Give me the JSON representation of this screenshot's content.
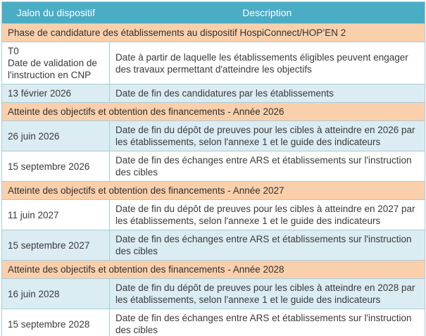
{
  "colors": {
    "header_bg": "#4BACC6",
    "header_text": "#FFFFFF",
    "section_bg": "#FAD0AC",
    "row_blue_bg": "#DBECF3",
    "row_white_bg": "#FFFFFF",
    "border": "#A9CBD8",
    "text": "#3A3A3A"
  },
  "table": {
    "columns": [
      {
        "id": "jalon",
        "label": "Jalon du dispositif"
      },
      {
        "id": "description",
        "label": "Description"
      }
    ],
    "rows": [
      {
        "type": "section",
        "title": "Phase de candidature des établissements au dispositif HospiConnect/HOP’EN 2"
      },
      {
        "type": "data",
        "shade": "white",
        "milestone": "T0\nDate de validation de l'instruction en CNP",
        "description": "Date à partir de laquelle les établissements éligibles peuvent engager des travaux permettant d'atteindre les objectifs"
      },
      {
        "type": "data",
        "shade": "blue",
        "milestone": "13 février 2026",
        "description": "Date de fin des candidatures par les établissements"
      },
      {
        "type": "section",
        "title": "Atteinte des objectifs et obtention des financements - Année 2026"
      },
      {
        "type": "data",
        "shade": "blue",
        "milestone": "26 juin 2026",
        "description": "Date de fin du dépôt de preuves pour les cibles à atteindre en 2026 par les établissements, selon l'annexe 1 et le guide des indicateurs"
      },
      {
        "type": "data",
        "shade": "white",
        "milestone": "15 septembre 2026",
        "description": "Date de fin des échanges entre ARS et établissements sur l'instruction des cibles"
      },
      {
        "type": "section",
        "title": "Atteinte des objectifs et obtention des financements - Année 2027"
      },
      {
        "type": "data",
        "shade": "white",
        "milestone": "11 juin 2027",
        "description": "Date de fin du dépôt de preuves pour les cibles à atteindre en 2027 par les établissements, selon l'annexe 1 et le guide des indicateurs"
      },
      {
        "type": "data",
        "shade": "blue",
        "milestone": "15 septembre 2027",
        "description": "Date de fin des échanges entre ARS et établissements sur l'instruction des cibles"
      },
      {
        "type": "section",
        "title": "Atteinte des objectifs et obtention des financements - Année 2028"
      },
      {
        "type": "data",
        "shade": "blue",
        "milestone": "16 juin 2028",
        "description": "Date de fin du dépôt de preuves pour les cibles à atteindre en 2028 par les établissements, selon l'annexe 1 et le guide des indicateurs"
      },
      {
        "type": "data",
        "shade": "white",
        "milestone": "15 septembre 2028",
        "description": "Date de fin des échanges entre ARS et établissements sur l'instruction des cibles"
      }
    ]
  }
}
